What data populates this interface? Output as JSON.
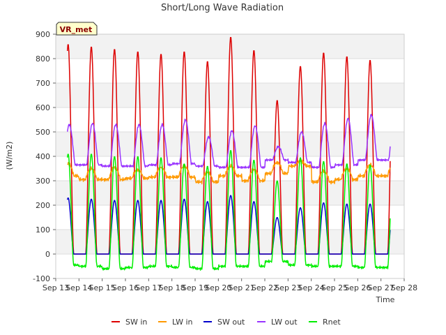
{
  "chart_data": {
    "type": "line",
    "title": "Short/Long Wave Radiation",
    "xlabel": "Time",
    "ylabel": "(W/m2)",
    "badge": "VR_met",
    "xlim": [
      13,
      28
    ],
    "ylim": [
      -100,
      900
    ],
    "x_ticks": [
      {
        "v": 13,
        "label": "Sep 13"
      },
      {
        "v": 14,
        "label": "Sep 14"
      },
      {
        "v": 15,
        "label": "Sep 15"
      },
      {
        "v": 16,
        "label": "Sep 16"
      },
      {
        "v": 17,
        "label": "Sep 17"
      },
      {
        "v": 18,
        "label": "Sep 18"
      },
      {
        "v": 19,
        "label": "Sep 19"
      },
      {
        "v": 20,
        "label": "Sep 20"
      },
      {
        "v": 21,
        "label": "Sep 21"
      },
      {
        "v": 22,
        "label": "Sep 22"
      },
      {
        "v": 23,
        "label": "Sep 23"
      },
      {
        "v": 24,
        "label": "Sep 24"
      },
      {
        "v": 25,
        "label": "Sep 25"
      },
      {
        "v": 26,
        "label": "Sep 26"
      },
      {
        "v": 27,
        "label": "Sep 27"
      },
      {
        "v": 28,
        "label": "Sep 28"
      }
    ],
    "y_ticks": [
      -100,
      0,
      100,
      200,
      300,
      400,
      500,
      600,
      700,
      800,
      900
    ],
    "legend_position": "bottom",
    "series": [
      {
        "name": "SW in",
        "color": "#dd0000",
        "daily": [
          {
            "day": 13,
            "peak": 860
          },
          {
            "day": 14,
            "peak": 850
          },
          {
            "day": 15,
            "peak": 840
          },
          {
            "day": 16,
            "peak": 830
          },
          {
            "day": 17,
            "peak": 820
          },
          {
            "day": 18,
            "peak": 830
          },
          {
            "day": 19,
            "peak": 790
          },
          {
            "day": 20,
            "peak": 890
          },
          {
            "day": 21,
            "peak": 835
          },
          {
            "day": 22,
            "peak": 630
          },
          {
            "day": 23,
            "peak": 770
          },
          {
            "day": 24,
            "peak": 825
          },
          {
            "day": 25,
            "peak": 810
          },
          {
            "day": 26,
            "peak": 795
          }
        ]
      },
      {
        "name": "LW in",
        "color": "#ff9900",
        "daily": [
          {
            "day": 13,
            "night": 320,
            "day_level": 370
          },
          {
            "day": 14,
            "night": 305,
            "day_level": 350
          },
          {
            "day": 15,
            "night": 305,
            "day_level": 355
          },
          {
            "day": 16,
            "night": 310,
            "day_level": 345
          },
          {
            "day": 17,
            "night": 315,
            "day_level": 355
          },
          {
            "day": 18,
            "night": 315,
            "day_level": 360
          },
          {
            "day": 19,
            "night": 295,
            "day_level": 335
          },
          {
            "day": 20,
            "night": 320,
            "day_level": 360
          },
          {
            "day": 21,
            "night": 300,
            "day_level": 345
          },
          {
            "day": 22,
            "night": 330,
            "day_level": 375
          },
          {
            "day": 23,
            "night": 360,
            "day_level": 380
          },
          {
            "day": 24,
            "night": 295,
            "day_level": 340
          },
          {
            "day": 25,
            "night": 305,
            "day_level": 350
          },
          {
            "day": 26,
            "night": 320,
            "day_level": 365
          }
        ]
      },
      {
        "name": "SW out",
        "color": "#0000cc",
        "daily": [
          {
            "day": 13,
            "peak": 230
          },
          {
            "day": 14,
            "peak": 225
          },
          {
            "day": 15,
            "peak": 220
          },
          {
            "day": 16,
            "peak": 220
          },
          {
            "day": 17,
            "peak": 220
          },
          {
            "day": 18,
            "peak": 225
          },
          {
            "day": 19,
            "peak": 215
          },
          {
            "day": 20,
            "peak": 240
          },
          {
            "day": 21,
            "peak": 215
          },
          {
            "day": 22,
            "peak": 150
          },
          {
            "day": 23,
            "peak": 190
          },
          {
            "day": 24,
            "peak": 210
          },
          {
            "day": 25,
            "peak": 205
          },
          {
            "day": 26,
            "peak": 205
          }
        ]
      },
      {
        "name": "LW out",
        "color": "#9933ff",
        "daily": [
          {
            "day": 13,
            "night": 365,
            "peak": 530
          },
          {
            "day": 14,
            "night": 365,
            "peak": 535
          },
          {
            "day": 15,
            "night": 360,
            "peak": 530
          },
          {
            "day": 16,
            "night": 360,
            "peak": 530
          },
          {
            "day": 17,
            "night": 365,
            "peak": 530
          },
          {
            "day": 18,
            "night": 370,
            "peak": 550
          },
          {
            "day": 19,
            "night": 360,
            "peak": 480
          },
          {
            "day": 20,
            "night": 355,
            "peak": 505
          },
          {
            "day": 21,
            "night": 355,
            "peak": 525
          },
          {
            "day": 22,
            "night": 385,
            "peak": 440
          },
          {
            "day": 23,
            "night": 375,
            "peak": 500
          },
          {
            "day": 24,
            "night": 355,
            "peak": 535
          },
          {
            "day": 25,
            "night": 365,
            "peak": 555
          },
          {
            "day": 26,
            "night": 385,
            "peak": 570
          }
        ]
      },
      {
        "name": "Rnet",
        "color": "#00ee00",
        "daily": [
          {
            "day": 13,
            "night": -45,
            "peak": 410
          },
          {
            "day": 14,
            "night": -50,
            "peak": 410
          },
          {
            "day": 15,
            "night": -60,
            "peak": 400
          },
          {
            "day": 16,
            "night": -55,
            "peak": 400
          },
          {
            "day": 17,
            "night": -50,
            "peak": 395
          },
          {
            "day": 18,
            "night": -55,
            "peak": 370
          },
          {
            "day": 19,
            "night": -60,
            "peak": 360
          },
          {
            "day": 20,
            "night": -50,
            "peak": 425
          },
          {
            "day": 21,
            "night": -50,
            "peak": 385
          },
          {
            "day": 22,
            "night": -30,
            "peak": 300
          },
          {
            "day": 23,
            "night": -45,
            "peak": 395
          },
          {
            "day": 24,
            "night": -50,
            "peak": 380
          },
          {
            "day": 25,
            "night": -50,
            "peak": 370
          },
          {
            "day": 26,
            "night": -55,
            "peak": 365
          }
        ]
      }
    ]
  }
}
